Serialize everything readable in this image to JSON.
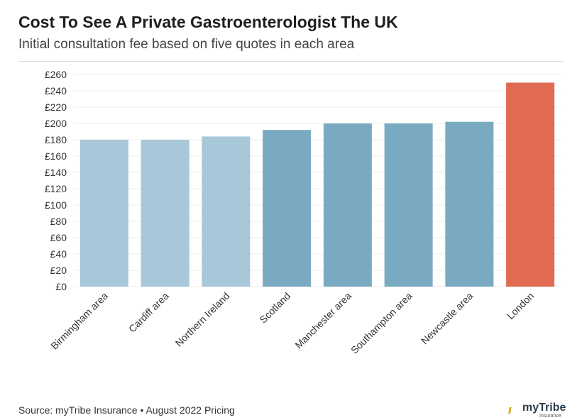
{
  "header": {
    "title": "Cost To See A Private Gastroenterologist The UK",
    "subtitle": "Initial consultation fee based on five quotes in each area"
  },
  "footer": {
    "source": "Source: myTribe Insurance • August 2022 Pricing",
    "logo_text": "myTribe",
    "logo_sub": "Insurance"
  },
  "colors": {
    "light": "#a8c8da",
    "medium": "#7aaac1",
    "highlight": "#e06a52"
  },
  "chart_data": {
    "type": "bar",
    "title": "Cost To See A Private Gastroenterologist The UK",
    "subtitle": "Initial consultation fee based on five quotes in each area",
    "categories": [
      "Birmingham area",
      "Cardiff area",
      "Northern Ireland",
      "Scotland",
      "Manchester area",
      "Southampton area",
      "Newcastle area",
      "London"
    ],
    "values": [
      180,
      180,
      184,
      192,
      200,
      200,
      202,
      250
    ],
    "bar_color_group": [
      "light",
      "light",
      "light",
      "medium",
      "medium",
      "medium",
      "medium",
      "highlight"
    ],
    "ylim": [
      0,
      260
    ],
    "yticks": [
      0,
      20,
      40,
      60,
      80,
      100,
      120,
      140,
      160,
      180,
      200,
      220,
      240,
      260
    ],
    "ytick_labels": [
      "£0",
      "£20",
      "£40",
      "£60",
      "£80",
      "£100",
      "£120",
      "£140",
      "£160",
      "£180",
      "£200",
      "£220",
      "£240",
      "£260"
    ],
    "grid": true,
    "xlabel": "",
    "ylabel": ""
  }
}
